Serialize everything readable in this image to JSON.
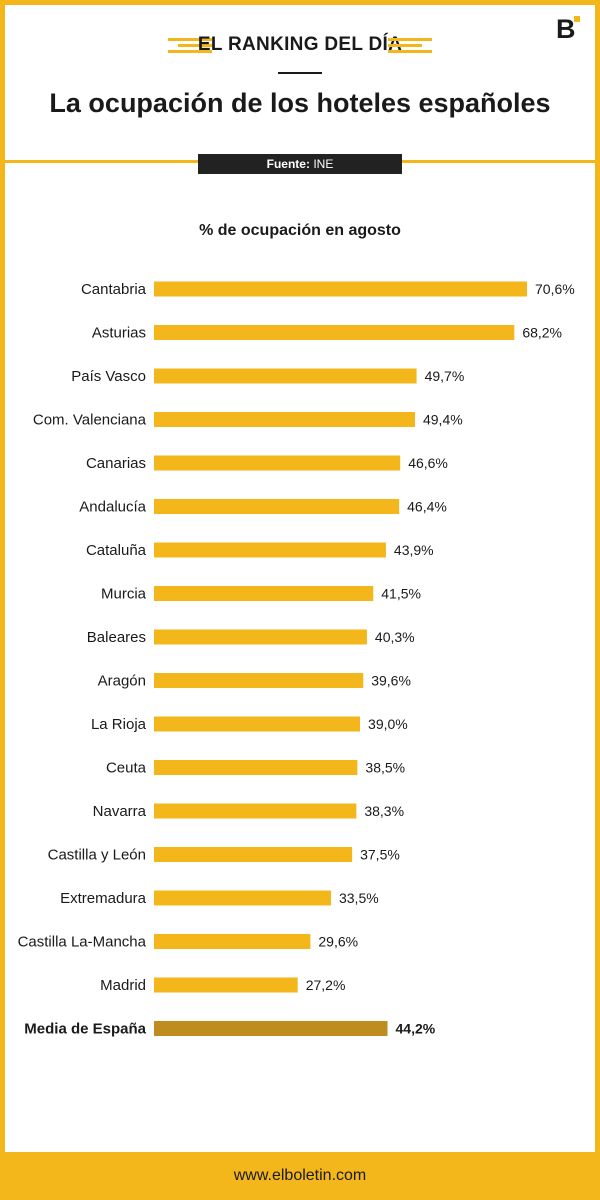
{
  "header": {
    "kicker": "EL RANKING DEL DÍA",
    "title": "La ocupación de los hoteles españoles",
    "source_label": "Fuente:",
    "source_value": "INE",
    "logo": "B"
  },
  "footer": {
    "url": "www.elboletin.com"
  },
  "colors": {
    "accent": "#f4b71b",
    "average_bar": "#bf8c1f",
    "dark": "#1a1a1a"
  },
  "chart_data": {
    "type": "bar",
    "orientation": "horizontal",
    "title": "% de ocupación en agosto",
    "xlabel": "",
    "ylabel": "",
    "xlim": [
      0,
      70.6
    ],
    "grid": false,
    "categories": [
      "Cantabria",
      "Asturias",
      "País Vasco",
      "Com. Valenciana",
      "Canarias",
      "Andalucía",
      "Cataluña",
      "Murcia",
      "Baleares",
      "Aragón",
      "La Rioja",
      "Ceuta",
      "Navarra",
      "Castilla y León",
      "Extremadura",
      "Castilla La-Mancha",
      "Madrid"
    ],
    "values": [
      70.6,
      68.2,
      49.7,
      49.4,
      46.6,
      46.4,
      43.9,
      41.5,
      40.3,
      39.6,
      39.0,
      38.5,
      38.3,
      37.5,
      33.5,
      29.6,
      27.2
    ],
    "value_labels": [
      "70,6%",
      "68,2%",
      "49,7%",
      "49,4%",
      "46,6%",
      "46,4%",
      "43,9%",
      "41,5%",
      "40,3%",
      "39,6%",
      "39,0%",
      "38,5%",
      "38,3%",
      "37,5%",
      "33,5%",
      "29,6%",
      "27,2%"
    ],
    "average": {
      "label": "Media de España",
      "value": 44.2,
      "value_label": "44,2%"
    }
  }
}
